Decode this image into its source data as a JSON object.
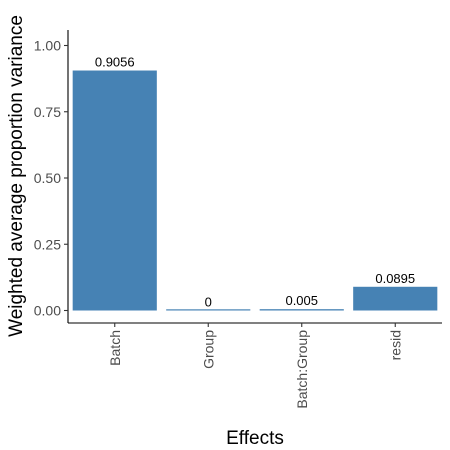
{
  "chart_data": {
    "type": "bar",
    "categories": [
      "Batch",
      "Group",
      "Batch:Group",
      "resid"
    ],
    "values": [
      0.9056,
      0,
      0.005,
      0.0895
    ],
    "data_labels": [
      "0.9056",
      "0",
      "0.005",
      "0.0895"
    ],
    "xlabel": "Effects",
    "ylabel": "Weighted average proportion variance",
    "ylim": [
      0,
      1.05
    ],
    "yticks": [
      0,
      0.25,
      0.5,
      0.75,
      1.0
    ],
    "ytick_labels": [
      "0.00",
      "0.25",
      "0.50",
      "0.75",
      "1.00"
    ],
    "grid": false,
    "x_tick_rotation": "vertical",
    "bar_color": "#4682b4"
  }
}
